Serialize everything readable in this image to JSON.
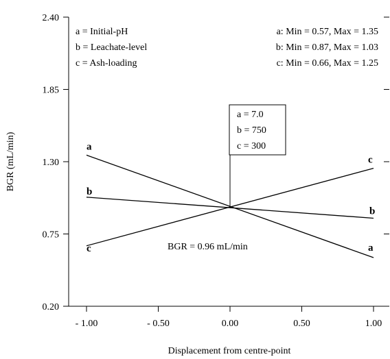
{
  "chart_data": {
    "type": "line",
    "xlabel": "Displacement from centre-point",
    "ylabel": "BGR (mL/min)",
    "xlim": [
      -1.0,
      1.0
    ],
    "ylim": [
      0.2,
      2.4
    ],
    "xticks": [
      -1.0,
      -0.5,
      0.0,
      0.5,
      1.0
    ],
    "xtick_labels": [
      "- 1.00",
      "- 0.50",
      "0.00",
      "0.50",
      "1.00"
    ],
    "yticks": [
      0.2,
      0.75,
      1.3,
      1.85,
      2.4
    ],
    "ytick_labels": [
      "0.20",
      "0.75",
      "1.30",
      "1.85",
      "2.40"
    ],
    "series": [
      {
        "name": "a",
        "x": [
          -1.0,
          1.0
        ],
        "y": [
          1.35,
          0.57
        ],
        "start_label": "a",
        "end_label": "a"
      },
      {
        "name": "b",
        "x": [
          -1.0,
          1.0
        ],
        "y": [
          1.03,
          0.87
        ],
        "start_label": "b",
        "end_label": "b"
      },
      {
        "name": "c",
        "x": [
          -1.0,
          1.0
        ],
        "y": [
          0.66,
          1.25
        ],
        "start_label": "c",
        "end_label": "c"
      }
    ],
    "legend_left": [
      "a = Initial-pH",
      "b = Leachate-level",
      "c = Ash-loading"
    ],
    "legend_right": [
      "a: Min = 0.57, Max = 1.35",
      "b: Min = 0.87, Max = 1.03",
      "c: Min = 0.66, Max = 1.25"
    ],
    "centre_box": [
      "a = 7.0",
      "b = 750",
      "c = 300"
    ],
    "centre_value": "BGR = 0.96 mL/min",
    "centre_y": 0.96
  }
}
